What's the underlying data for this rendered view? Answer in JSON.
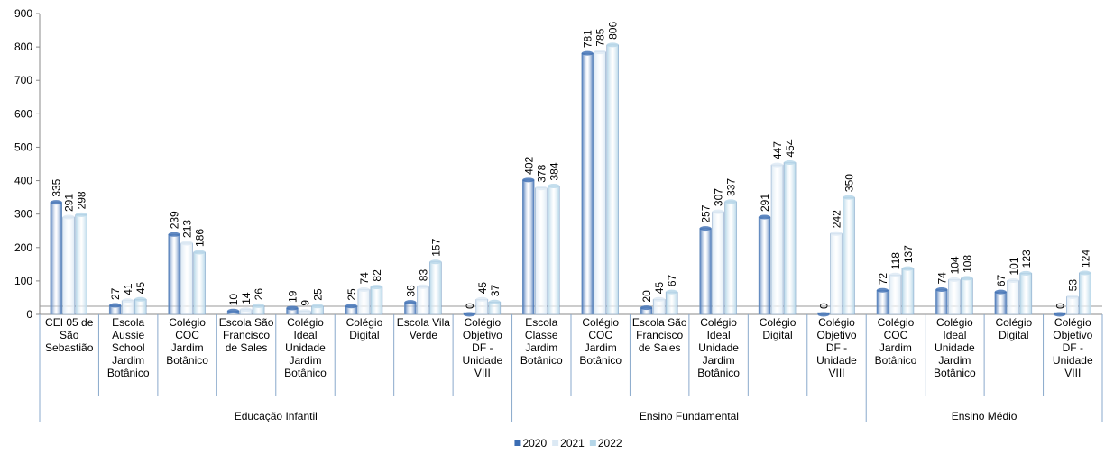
{
  "chart_data": {
    "type": "bar",
    "groups": [
      {
        "name": "Educação Infantil",
        "categories": [
          "CEI 05 de São Sebastião",
          "Escola Aussie School Jardim Botânico",
          "Colégio COC Jardim Botânico",
          "Escola São Francisco de Sales",
          "Colégio Ideal Unidade Jardim Botânico",
          "Colégio Digital",
          "Escola Vila Verde",
          "Colégio Objetivo DF - Unidade VIII"
        ]
      },
      {
        "name": "Ensino Fundamental",
        "categories": [
          "Escola Classe Jardim Botânico",
          "Colégio COC Jardim Botânico",
          "Escola São Francisco de Sales",
          "Colégio Ideal Unidade Jardim Botânico",
          "Colégio Digital",
          "Colégio Objetivo DF - Unidade VIII"
        ]
      },
      {
        "name": "Ensino Médio",
        "categories": [
          "Colégio COC Jardim Botânico",
          "Colégio Ideal Unidade Jardim Botânico",
          "Colégio Digital",
          "Colégio Objetivo DF - Unidade VIII"
        ]
      }
    ],
    "series": [
      {
        "name": "2020",
        "color": "#3b6db3",
        "values": [
          335,
          27,
          239,
          10,
          19,
          25,
          36,
          0,
          402,
          781,
          20,
          257,
          291,
          0,
          72,
          74,
          67,
          0
        ]
      },
      {
        "name": "2021",
        "color": "#dce9f4",
        "values": [
          291,
          41,
          213,
          14,
          9,
          74,
          83,
          45,
          378,
          785,
          45,
          307,
          447,
          242,
          118,
          104,
          101,
          53
        ]
      },
      {
        "name": "2022",
        "color": "#b5d6e8",
        "values": [
          298,
          45,
          186,
          26,
          25,
          82,
          157,
          37,
          384,
          806,
          67,
          337,
          454,
          350,
          137,
          108,
          123,
          124
        ]
      }
    ],
    "ylim": [
      0,
      900
    ],
    "yticks": [
      0,
      100,
      200,
      300,
      400,
      500,
      600,
      700,
      800,
      900
    ],
    "legend": "bottom"
  }
}
